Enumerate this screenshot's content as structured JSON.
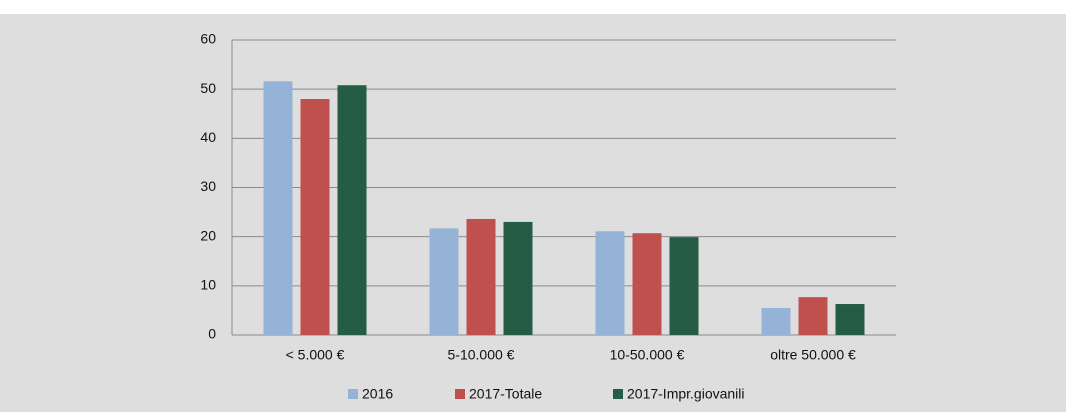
{
  "chart_data": {
    "type": "bar",
    "categories": [
      "< 5.000 €",
      "5-10.000 €",
      "10-50.000 €",
      "oltre 50.000 €"
    ],
    "series": [
      {
        "name": "2016",
        "color": "#95b3d7",
        "values": [
          51.6,
          21.7,
          21.1,
          5.5
        ]
      },
      {
        "name": "2017-Totale",
        "color": "#c0504d",
        "values": [
          48,
          23.6,
          20.7,
          7.7
        ]
      },
      {
        "name": "2017-Impr.giovanili",
        "color": "#255c45",
        "values": [
          50.8,
          23,
          19.9,
          6.3
        ]
      }
    ],
    "ylim": [
      0,
      60
    ],
    "yticks": [
      0,
      10,
      20,
      30,
      40,
      50,
      60
    ],
    "grid": true,
    "legend": "bottom"
  }
}
